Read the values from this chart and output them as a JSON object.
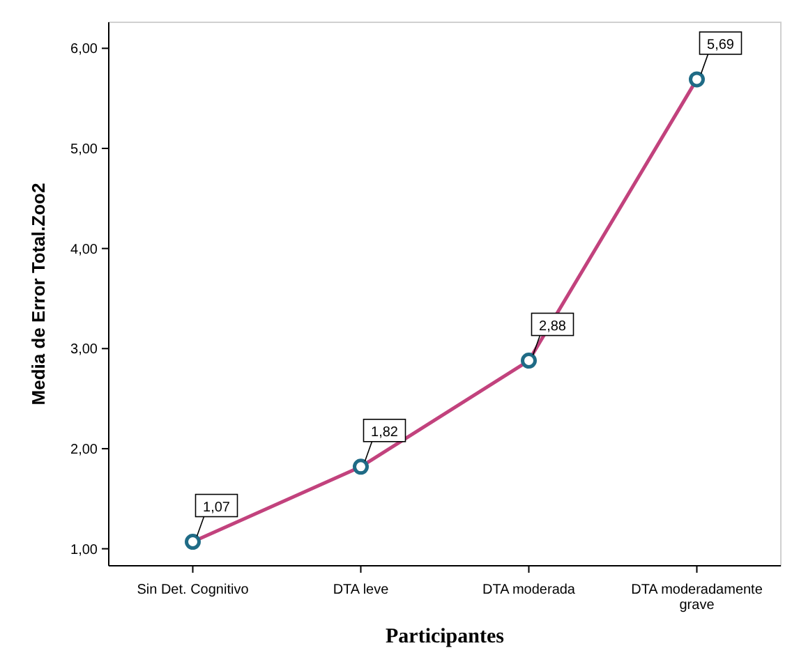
{
  "chart_data": {
    "type": "line",
    "xlabel": "Participantes",
    "ylabel": "Media de Error Total.Zoo2",
    "categories": [
      "Sin Det. Cognitivo",
      "DTA leve",
      "DTA moderada",
      "DTA moderadamente grave"
    ],
    "series": [
      {
        "color": "#c2427d",
        "values": [
          1.07,
          1.82,
          2.88,
          5.69
        ],
        "value_labels": [
          "1,07",
          "1,82",
          "2,88",
          "5,69"
        ]
      }
    ],
    "ylim": [
      0.83,
      6.26
    ],
    "yticks": [
      {
        "value": 1,
        "label": "1,00"
      },
      {
        "value": 2,
        "label": "2,00"
      },
      {
        "value": 3,
        "label": "3,00"
      },
      {
        "value": 4,
        "label": "4,00"
      },
      {
        "value": 5,
        "label": "5,00"
      },
      {
        "value": 6,
        "label": "6,00"
      }
    ],
    "grid": false,
    "marker": "circle",
    "line_style": "solid"
  }
}
